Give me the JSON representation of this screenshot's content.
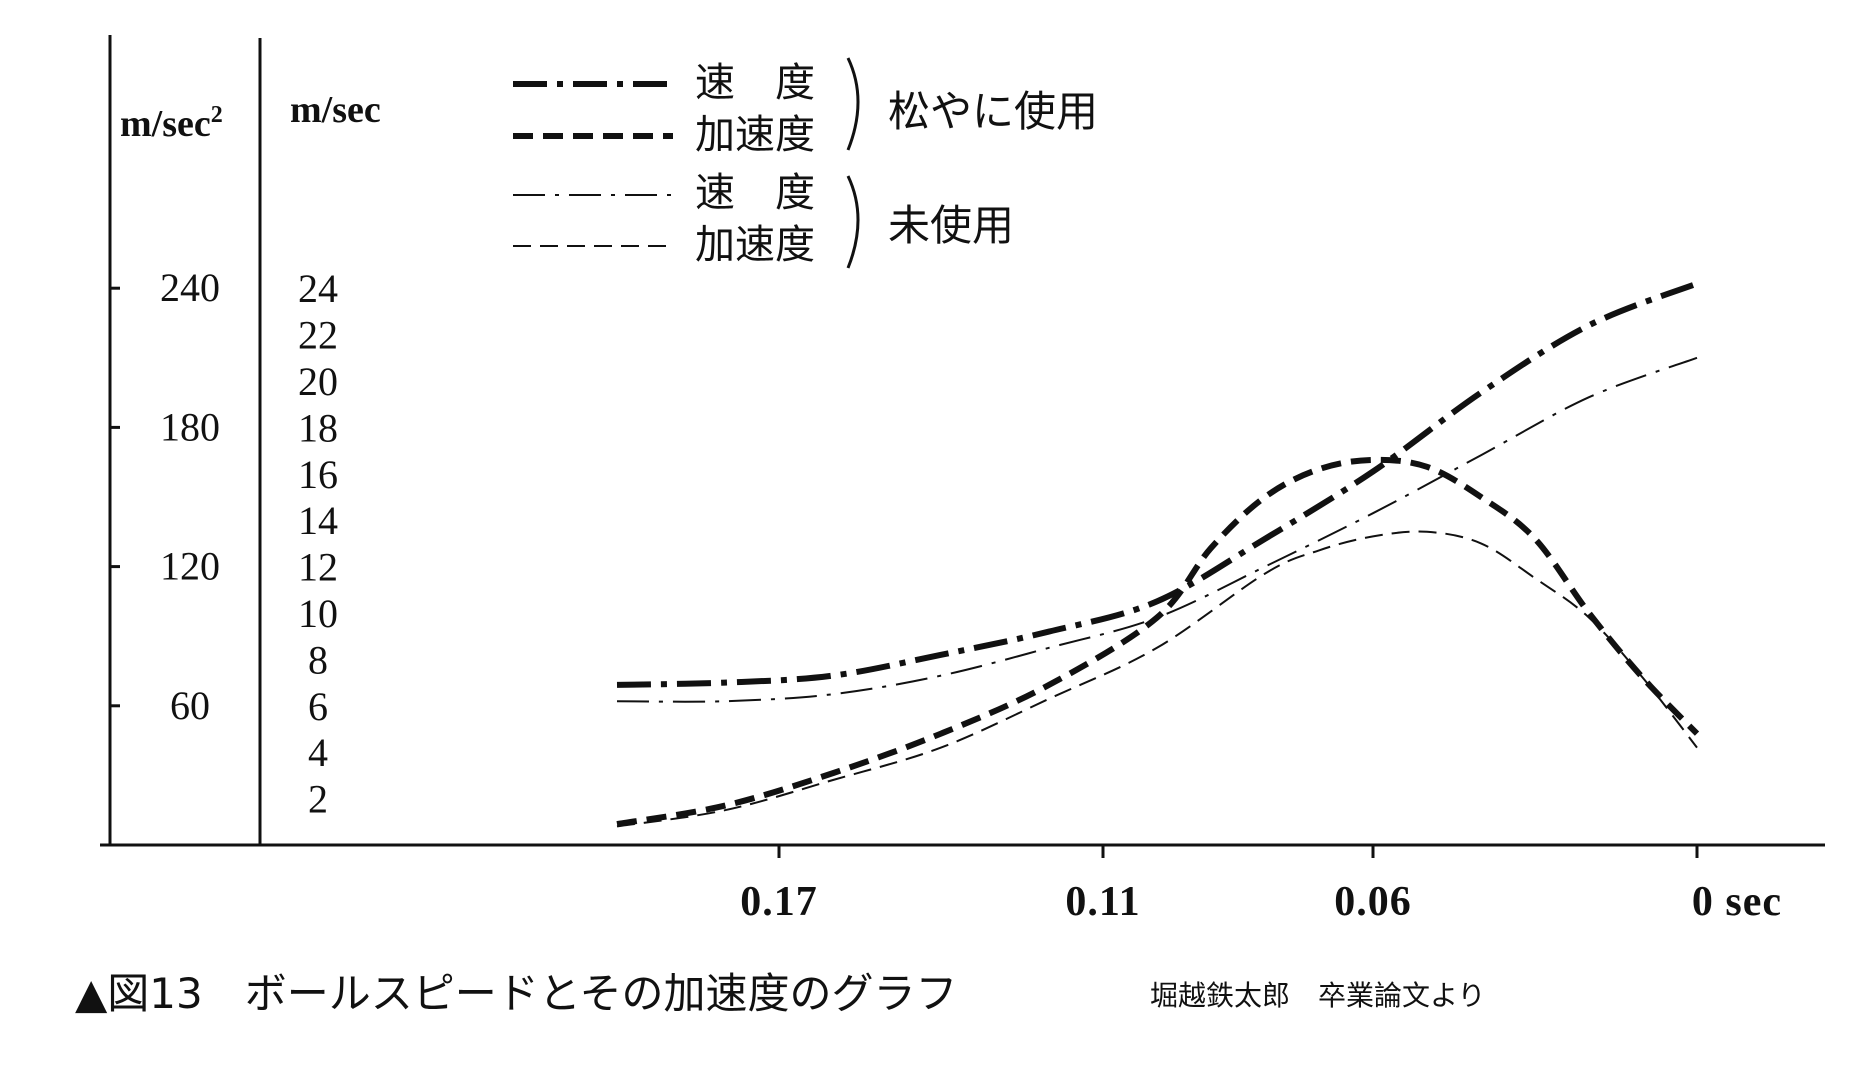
{
  "chart_data": {
    "type": "line",
    "caption": "▲図13　ボールスピードとその加速度のグラフ",
    "source": "堀越鉄太郎　卒業論文より",
    "x_axis": {
      "ticks": [
        0.17,
        0.11,
        0.06,
        0
      ],
      "tick_labels": [
        "0.17",
        "0.11",
        "0.06",
        "0 sec"
      ],
      "reversed": true
    },
    "y_axis_accel": {
      "unit": "m/sec",
      "unit_sup": "2",
      "ticks": [
        60,
        120,
        180,
        240
      ],
      "range": [
        0,
        240
      ]
    },
    "y_axis_speed": {
      "unit": "m/sec",
      "ticks": [
        2,
        4,
        6,
        8,
        10,
        12,
        14,
        16,
        18,
        20,
        22,
        24
      ],
      "range": [
        0,
        24
      ]
    },
    "legend": {
      "groups": [
        {
          "label": "松やに使用",
          "style": "bold",
          "entries": [
            "速　度",
            "加速度"
          ]
        },
        {
          "label": "未使用",
          "style": "thin",
          "entries": [
            "速　度",
            "加速度"
          ]
        }
      ]
    },
    "series": [
      {
        "name": "速度（松やに使用）",
        "axis": "speed",
        "style": "bold-dashdot",
        "x": [
          0.2,
          0.18,
          0.16,
          0.14,
          0.12,
          0.1,
          0.08,
          0.06,
          0.04,
          0.02,
          0.0
        ],
        "y": [
          6.9,
          7.0,
          7.3,
          8.2,
          9.2,
          10.5,
          13.2,
          16.1,
          19.5,
          22.4,
          24.2
        ]
      },
      {
        "name": "加速度（松やに使用）",
        "axis": "accel",
        "style": "bold-dash",
        "x": [
          0.2,
          0.18,
          0.16,
          0.14,
          0.12,
          0.1,
          0.09,
          0.08,
          0.07,
          0.06,
          0.05,
          0.04,
          0.03,
          0.02,
          0.01,
          0.0
        ],
        "y": [
          9,
          17,
          31,
          48,
          69,
          98,
          128,
          150,
          162,
          166,
          163,
          150,
          132,
          100,
          72,
          48
        ]
      },
      {
        "name": "速度（未使用）",
        "axis": "speed",
        "style": "thin-dashdot",
        "x": [
          0.2,
          0.18,
          0.16,
          0.14,
          0.12,
          0.1,
          0.08,
          0.06,
          0.04,
          0.02,
          0.0
        ],
        "y": [
          6.2,
          6.2,
          6.5,
          7.3,
          8.5,
          9.8,
          12.0,
          14.3,
          16.8,
          19.3,
          21.0
        ]
      },
      {
        "name": "加速度（未使用）",
        "axis": "accel",
        "style": "thin-dash",
        "x": [
          0.2,
          0.18,
          0.16,
          0.14,
          0.12,
          0.1,
          0.08,
          0.07,
          0.06,
          0.05,
          0.04,
          0.03,
          0.02,
          0.01,
          0.0
        ],
        "y": [
          8,
          15,
          28,
          42,
          63,
          85,
          117,
          127,
          133,
          135,
          130,
          115,
          98,
          72,
          42
        ]
      }
    ]
  }
}
